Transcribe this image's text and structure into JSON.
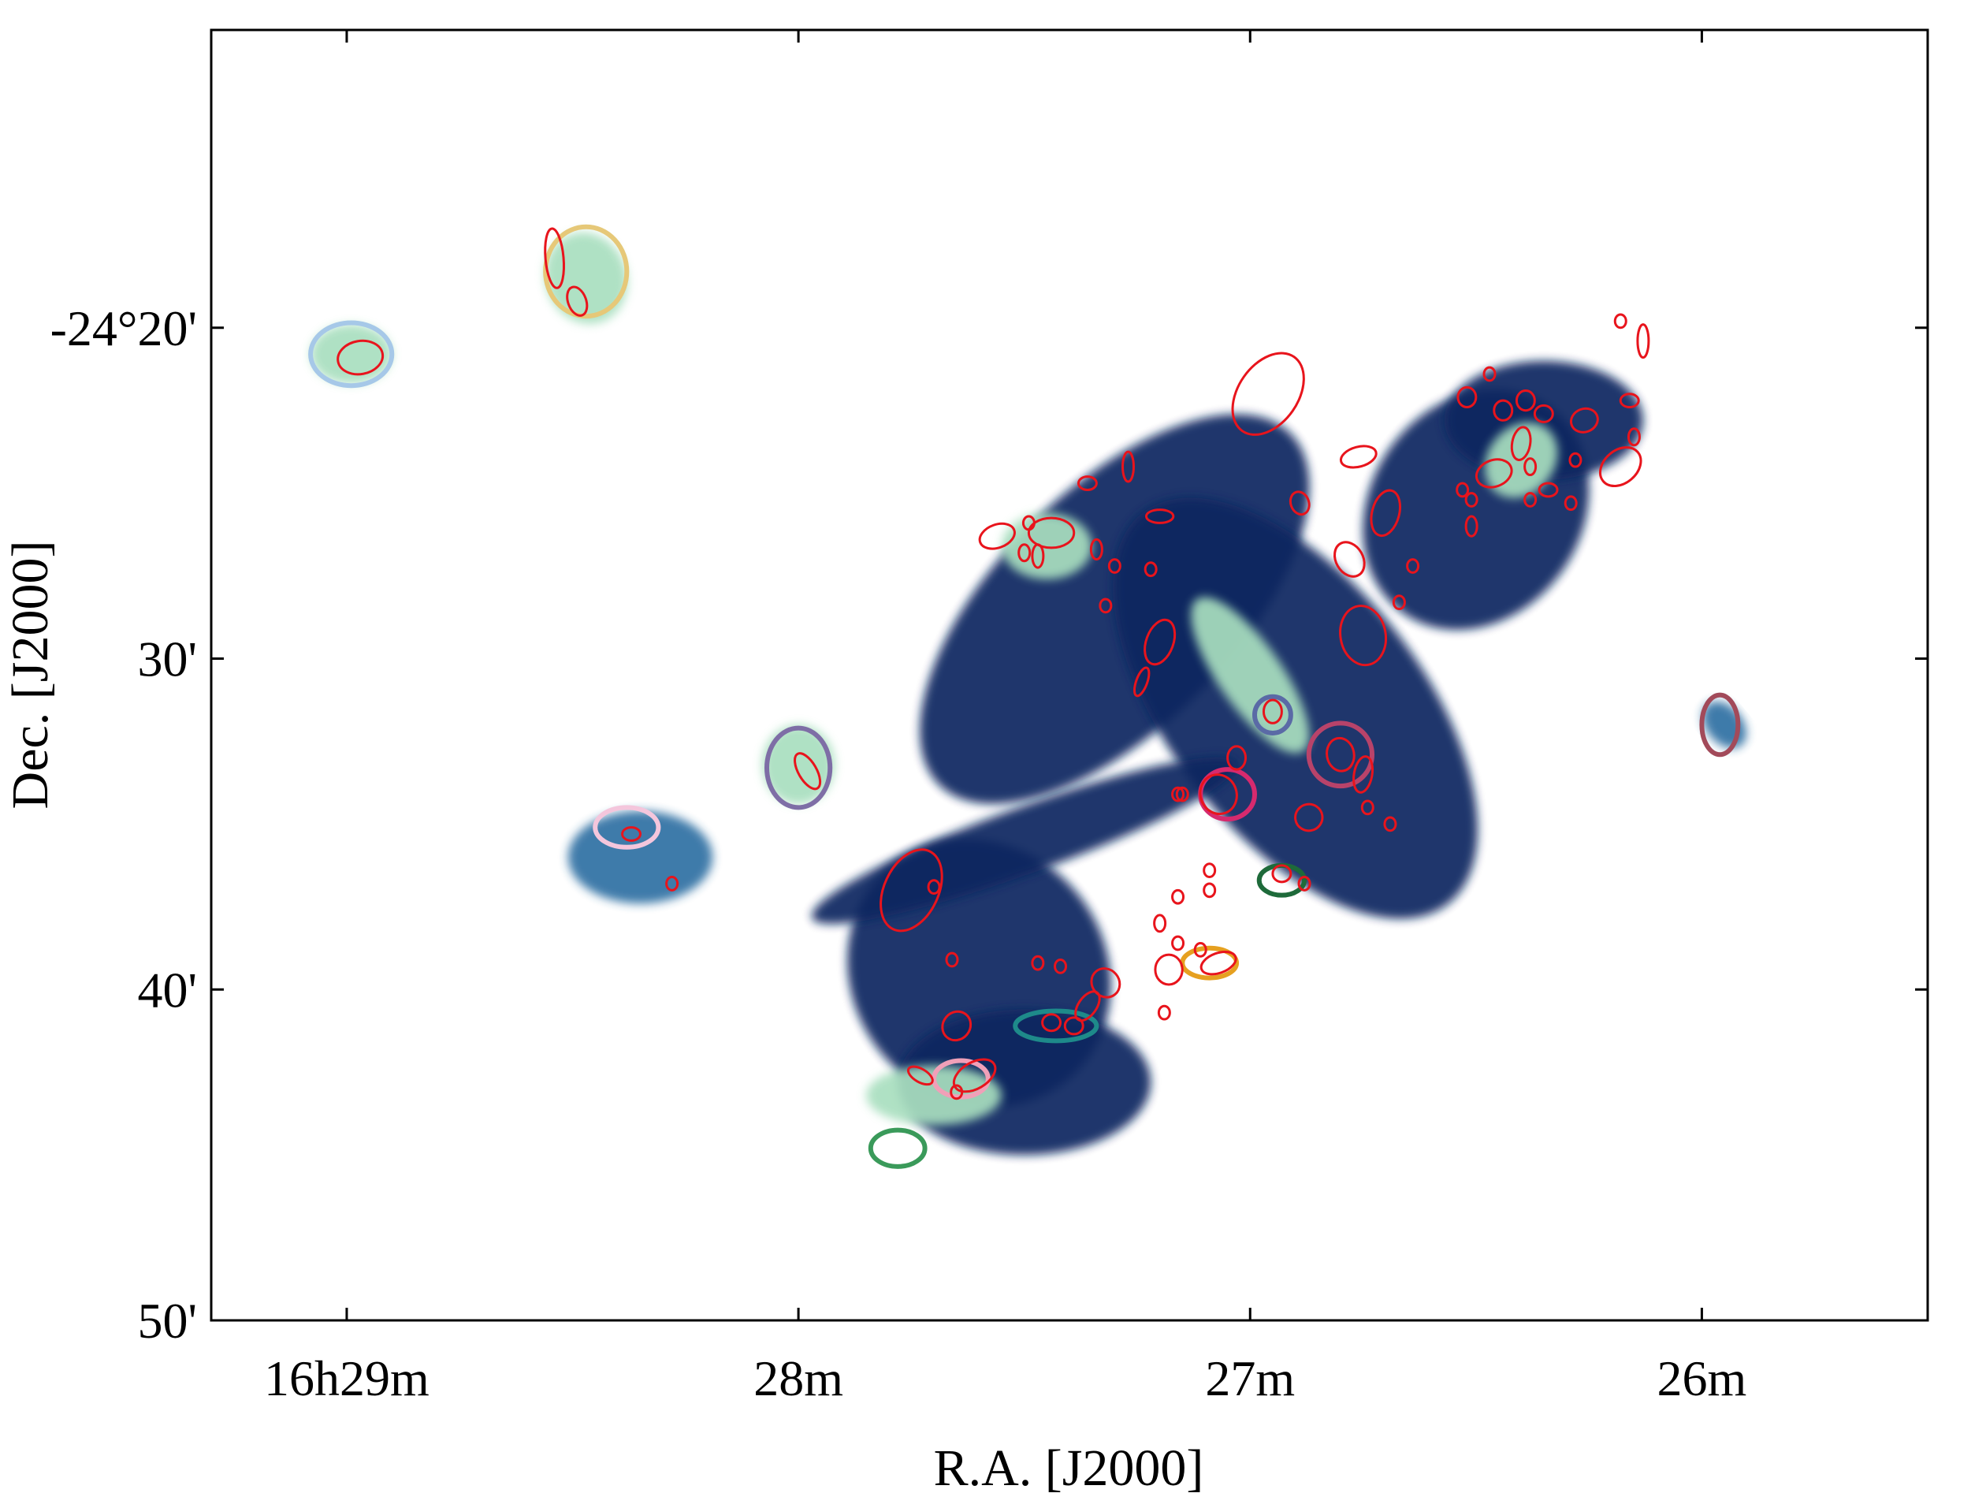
{
  "chart_data": {
    "type": "scatter",
    "title": "",
    "xlabel": "R.A. [J2000]",
    "ylabel": "Dec. [J2000]",
    "x_units": "minutes of R.A. relative to 16h00m (increasing to the left)",
    "y_units": "arcminutes of Dec. below -24°00'",
    "xlim": [
      29.3,
      25.5
    ],
    "ylim": [
      50,
      11
    ],
    "x_ticks": [
      {
        "value": 29,
        "label": "16h29m"
      },
      {
        "value": 28,
        "label": "28m"
      },
      {
        "value": 27,
        "label": "27m"
      },
      {
        "value": 26,
        "label": "26m"
      }
    ],
    "y_ticks": [
      {
        "value": 20,
        "label": "-24°20'"
      },
      {
        "value": 30,
        "label": "30'"
      },
      {
        "value": 40,
        "label": "40'"
      },
      {
        "value": 50,
        "label": "50'"
      }
    ],
    "grid": false,
    "legend": "none",
    "colors": {
      "map_dark": "#0d2560",
      "map_mid": "#2f6fa3",
      "map_light": "#a9dfbf",
      "ellipse": "#e8141c",
      "frame": "#000000"
    },
    "map_regions": [
      {
        "x": 28.99,
        "y": 20.8,
        "rx": 0.09,
        "ry": 0.9,
        "rot": 0,
        "level": "light"
      },
      {
        "x": 28.47,
        "y": 18.5,
        "rx": 0.09,
        "ry": 1.4,
        "rot": -20,
        "level": "light"
      },
      {
        "x": 27.3,
        "y": 28.5,
        "rx": 0.55,
        "ry": 3.6,
        "rot": -45,
        "level": "dark"
      },
      {
        "x": 26.9,
        "y": 31.5,
        "rx": 0.28,
        "ry": 7.5,
        "rot": -38,
        "level": "dark"
      },
      {
        "x": 26.5,
        "y": 25.5,
        "rx": 0.28,
        "ry": 3.2,
        "rot": -55,
        "level": "dark"
      },
      {
        "x": 26.35,
        "y": 22.8,
        "rx": 0.22,
        "ry": 1.8,
        "rot": 0,
        "level": "dark"
      },
      {
        "x": 27.6,
        "y": 39.5,
        "rx": 0.28,
        "ry": 4.2,
        "rot": -40,
        "level": "dark"
      },
      {
        "x": 27.5,
        "y": 42.8,
        "rx": 0.28,
        "ry": 2.2,
        "rot": 0,
        "level": "dark"
      },
      {
        "x": 28.0,
        "y": 33.2,
        "rx": 0.08,
        "ry": 1.2,
        "rot": 0,
        "level": "light"
      },
      {
        "x": 28.35,
        "y": 36.0,
        "rx": 0.16,
        "ry": 1.4,
        "rot": 0,
        "level": "mid"
      },
      {
        "x": 27.5,
        "y": 35.5,
        "rx": 0.5,
        "ry": 1.0,
        "rot": -20,
        "level": "dark"
      },
      {
        "x": 27.0,
        "y": 30.5,
        "rx": 0.07,
        "ry": 2.8,
        "rot": -35,
        "level": "light"
      },
      {
        "x": 27.45,
        "y": 26.6,
        "rx": 0.1,
        "ry": 1.0,
        "rot": 0,
        "level": "light"
      },
      {
        "x": 27.7,
        "y": 43.2,
        "rx": 0.15,
        "ry": 0.9,
        "rot": 0,
        "level": "light"
      },
      {
        "x": 26.4,
        "y": 24.0,
        "rx": 0.09,
        "ry": 1.0,
        "rot": -50,
        "level": "light"
      },
      {
        "x": 25.95,
        "y": 32.0,
        "rx": 0.04,
        "ry": 0.8,
        "rot": -40,
        "level": "mid"
      }
    ],
    "contours": [
      {
        "x": 28.99,
        "y": 20.8,
        "rx": 0.09,
        "ry": 0.95,
        "color": "#a6c8e8"
      },
      {
        "x": 28.47,
        "y": 18.3,
        "rx": 0.09,
        "ry": 1.35,
        "color": "#e6c878"
      },
      {
        "x": 28.0,
        "y": 33.3,
        "rx": 0.07,
        "ry": 1.2,
        "color": "#7e6ea6"
      },
      {
        "x": 28.38,
        "y": 35.1,
        "rx": 0.07,
        "ry": 0.6,
        "color": "#f4c6dc"
      },
      {
        "x": 27.05,
        "y": 34.1,
        "rx": 0.06,
        "ry": 0.75,
        "color": "#d62a6e"
      },
      {
        "x": 26.95,
        "y": 31.7,
        "rx": 0.04,
        "ry": 0.55,
        "color": "#5a6aa6"
      },
      {
        "x": 26.8,
        "y": 32.9,
        "rx": 0.07,
        "ry": 0.95,
        "color": "#b8436a"
      },
      {
        "x": 26.93,
        "y": 36.7,
        "rx": 0.05,
        "ry": 0.45,
        "color": "#1e6a3a"
      },
      {
        "x": 27.09,
        "y": 39.2,
        "rx": 0.06,
        "ry": 0.45,
        "color": "#e6a020"
      },
      {
        "x": 27.43,
        "y": 41.1,
        "rx": 0.09,
        "ry": 0.45,
        "color": "#1e8a8a"
      },
      {
        "x": 27.64,
        "y": 42.7,
        "rx": 0.06,
        "ry": 0.55,
        "color": "#f0a0b8"
      },
      {
        "x": 27.78,
        "y": 44.8,
        "rx": 0.06,
        "ry": 0.55,
        "color": "#3a9a5a"
      },
      {
        "x": 25.96,
        "y": 32.0,
        "rx": 0.04,
        "ry": 0.9,
        "color": "#a24a5a"
      }
    ],
    "cores": [
      {
        "x": 28.97,
        "y": 20.9,
        "rx": 0.05,
        "ry": 0.5,
        "rot": -10
      },
      {
        "x": 28.54,
        "y": 17.9,
        "rx": 0.02,
        "ry": 0.9,
        "rot": -5
      },
      {
        "x": 28.49,
        "y": 19.2,
        "rx": 0.02,
        "ry": 0.45,
        "rot": -20
      },
      {
        "x": 27.98,
        "y": 33.4,
        "rx": 0.02,
        "ry": 0.6,
        "rot": -30
      },
      {
        "x": 28.37,
        "y": 35.3,
        "rx": 0.02,
        "ry": 0.2,
        "rot": 0
      },
      {
        "x": 28.28,
        "y": 36.8,
        "rx": 0.01,
        "ry": 0.2,
        "rot": 0
      },
      {
        "x": 27.75,
        "y": 37.0,
        "rx": 0.06,
        "ry": 1.3,
        "rot": 25
      },
      {
        "x": 27.7,
        "y": 36.9,
        "rx": 0.01,
        "ry": 0.2,
        "rot": 0
      },
      {
        "x": 27.66,
        "y": 39.1,
        "rx": 0.01,
        "ry": 0.2,
        "rot": 0
      },
      {
        "x": 27.65,
        "y": 41.1,
        "rx": 0.03,
        "ry": 0.45,
        "rot": 40
      },
      {
        "x": 27.61,
        "y": 42.6,
        "rx": 0.05,
        "ry": 0.4,
        "rot": -30
      },
      {
        "x": 27.73,
        "y": 42.6,
        "rx": 0.03,
        "ry": 0.2,
        "rot": 30
      },
      {
        "x": 27.65,
        "y": 43.1,
        "rx": 0.01,
        "ry": 0.2,
        "rot": 0
      },
      {
        "x": 27.47,
        "y": 39.2,
        "rx": 0.01,
        "ry": 0.2,
        "rot": 0
      },
      {
        "x": 27.42,
        "y": 39.3,
        "rx": 0.01,
        "ry": 0.2,
        "rot": 0
      },
      {
        "x": 27.36,
        "y": 40.5,
        "rx": 0.02,
        "ry": 0.5,
        "rot": 35
      },
      {
        "x": 27.32,
        "y": 39.8,
        "rx": 0.03,
        "ry": 0.45,
        "rot": -40
      },
      {
        "x": 27.44,
        "y": 41.0,
        "rx": 0.02,
        "ry": 0.25,
        "rot": 0
      },
      {
        "x": 27.39,
        "y": 41.1,
        "rx": 0.02,
        "ry": 0.25,
        "rot": 0
      },
      {
        "x": 27.18,
        "y": 39.4,
        "rx": 0.03,
        "ry": 0.45,
        "rot": 0
      },
      {
        "x": 27.07,
        "y": 39.2,
        "rx": 0.04,
        "ry": 0.3,
        "rot": -20
      },
      {
        "x": 27.19,
        "y": 40.7,
        "rx": 0.01,
        "ry": 0.2,
        "rot": 0
      },
      {
        "x": 27.2,
        "y": 38.0,
        "rx": 0.01,
        "ry": 0.25,
        "rot": 0
      },
      {
        "x": 27.16,
        "y": 38.6,
        "rx": 0.01,
        "ry": 0.2,
        "rot": 0
      },
      {
        "x": 27.11,
        "y": 38.8,
        "rx": 0.01,
        "ry": 0.2,
        "rot": 0
      },
      {
        "x": 27.16,
        "y": 37.2,
        "rx": 0.01,
        "ry": 0.2,
        "rot": 0
      },
      {
        "x": 27.09,
        "y": 37.0,
        "rx": 0.01,
        "ry": 0.2,
        "rot": 0
      },
      {
        "x": 27.09,
        "y": 36.4,
        "rx": 0.01,
        "ry": 0.2,
        "rot": 0
      },
      {
        "x": 27.16,
        "y": 34.1,
        "rx": 0.01,
        "ry": 0.2,
        "rot": 0
      },
      {
        "x": 27.07,
        "y": 34.1,
        "rx": 0.04,
        "ry": 0.6,
        "rot": -20
      },
      {
        "x": 27.03,
        "y": 33.0,
        "rx": 0.02,
        "ry": 0.35,
        "rot": 0
      },
      {
        "x": 26.95,
        "y": 31.6,
        "rx": 0.02,
        "ry": 0.35,
        "rot": 0
      },
      {
        "x": 26.87,
        "y": 34.8,
        "rx": 0.03,
        "ry": 0.4,
        "rot": -10
      },
      {
        "x": 26.8,
        "y": 32.9,
        "rx": 0.03,
        "ry": 0.5,
        "rot": -10
      },
      {
        "x": 26.75,
        "y": 33.5,
        "rx": 0.02,
        "ry": 0.55,
        "rot": 10
      },
      {
        "x": 26.74,
        "y": 34.5,
        "rx": 0.01,
        "ry": 0.2,
        "rot": 0
      },
      {
        "x": 26.69,
        "y": 35.0,
        "rx": 0.01,
        "ry": 0.2,
        "rot": 0
      },
      {
        "x": 26.93,
        "y": 36.5,
        "rx": 0.02,
        "ry": 0.25,
        "rot": 0
      },
      {
        "x": 26.88,
        "y": 36.8,
        "rx": 0.01,
        "ry": 0.2,
        "rot": 0
      },
      {
        "x": 26.75,
        "y": 29.3,
        "rx": 0.05,
        "ry": 0.9,
        "rot": -10
      },
      {
        "x": 26.78,
        "y": 27.0,
        "rx": 0.03,
        "ry": 0.55,
        "rot": -30
      },
      {
        "x": 26.7,
        "y": 25.6,
        "rx": 0.03,
        "ry": 0.7,
        "rot": 15
      },
      {
        "x": 26.76,
        "y": 23.9,
        "rx": 0.04,
        "ry": 0.3,
        "rot": -15
      },
      {
        "x": 26.89,
        "y": 25.3,
        "rx": 0.02,
        "ry": 0.35,
        "rot": -20
      },
      {
        "x": 26.96,
        "y": 22.0,
        "rx": 0.1,
        "ry": 0.9,
        "rot": -55
      },
      {
        "x": 26.64,
        "y": 27.2,
        "rx": 0.01,
        "ry": 0.2,
        "rot": 0
      },
      {
        "x": 26.67,
        "y": 28.3,
        "rx": 0.01,
        "ry": 0.2,
        "rot": 0
      },
      {
        "x": 26.53,
        "y": 24.9,
        "rx": 0.01,
        "ry": 0.2,
        "rot": 0
      },
      {
        "x": 26.51,
        "y": 25.2,
        "rx": 0.01,
        "ry": 0.2,
        "rot": 0
      },
      {
        "x": 26.46,
        "y": 24.4,
        "rx": 0.04,
        "ry": 0.4,
        "rot": -20
      },
      {
        "x": 26.51,
        "y": 26.0,
        "rx": 0.01,
        "ry": 0.3,
        "rot": 0
      },
      {
        "x": 26.52,
        "y": 22.1,
        "rx": 0.02,
        "ry": 0.3,
        "rot": 0
      },
      {
        "x": 26.47,
        "y": 21.4,
        "rx": 0.01,
        "ry": 0.2,
        "rot": 0
      },
      {
        "x": 26.44,
        "y": 22.5,
        "rx": 0.02,
        "ry": 0.3,
        "rot": 0
      },
      {
        "x": 26.4,
        "y": 23.5,
        "rx": 0.02,
        "ry": 0.5,
        "rot": 10
      },
      {
        "x": 26.39,
        "y": 22.2,
        "rx": 0.02,
        "ry": 0.3,
        "rot": 0
      },
      {
        "x": 26.35,
        "y": 22.6,
        "rx": 0.02,
        "ry": 0.25,
        "rot": 0
      },
      {
        "x": 26.38,
        "y": 24.2,
        "rx": 0.01,
        "ry": 0.25,
        "rot": 0
      },
      {
        "x": 26.38,
        "y": 25.2,
        "rx": 0.01,
        "ry": 0.2,
        "rot": 0
      },
      {
        "x": 26.26,
        "y": 22.8,
        "rx": 0.03,
        "ry": 0.35,
        "rot": -20
      },
      {
        "x": 26.28,
        "y": 24.0,
        "rx": 0.01,
        "ry": 0.2,
        "rot": 0
      },
      {
        "x": 26.18,
        "y": 24.2,
        "rx": 0.05,
        "ry": 0.5,
        "rot": -40
      },
      {
        "x": 26.29,
        "y": 25.3,
        "rx": 0.01,
        "ry": 0.2,
        "rot": 0
      },
      {
        "x": 26.15,
        "y": 23.3,
        "rx": 0.01,
        "ry": 0.25,
        "rot": 0
      },
      {
        "x": 26.13,
        "y": 20.4,
        "rx": 0.01,
        "ry": 0.5,
        "rot": 0
      },
      {
        "x": 26.18,
        "y": 19.8,
        "rx": 0.01,
        "ry": 0.2,
        "rot": 0
      },
      {
        "x": 26.16,
        "y": 22.2,
        "rx": 0.02,
        "ry": 0.2,
        "rot": 0
      },
      {
        "x": 26.34,
        "y": 24.9,
        "rx": 0.02,
        "ry": 0.2,
        "rot": 0
      },
      {
        "x": 27.44,
        "y": 26.2,
        "rx": 0.05,
        "ry": 0.45,
        "rot": 0
      },
      {
        "x": 27.56,
        "y": 26.3,
        "rx": 0.04,
        "ry": 0.35,
        "rot": -20
      },
      {
        "x": 27.5,
        "y": 26.8,
        "rx": 0.01,
        "ry": 0.25,
        "rot": 0
      },
      {
        "x": 27.47,
        "y": 26.9,
        "rx": 0.01,
        "ry": 0.35,
        "rot": 0
      },
      {
        "x": 27.49,
        "y": 25.9,
        "rx": 0.01,
        "ry": 0.2,
        "rot": 0
      },
      {
        "x": 27.36,
        "y": 24.7,
        "rx": 0.02,
        "ry": 0.2,
        "rot": 0
      },
      {
        "x": 27.27,
        "y": 24.2,
        "rx": 0.01,
        "ry": 0.45,
        "rot": 0
      },
      {
        "x": 27.34,
        "y": 26.7,
        "rx": 0.01,
        "ry": 0.3,
        "rot": 0
      },
      {
        "x": 27.3,
        "y": 27.2,
        "rx": 0.01,
        "ry": 0.2,
        "rot": 0
      },
      {
        "x": 27.32,
        "y": 28.4,
        "rx": 0.01,
        "ry": 0.2,
        "rot": 0
      },
      {
        "x": 27.2,
        "y": 29.5,
        "rx": 0.03,
        "ry": 0.7,
        "rot": 20
      },
      {
        "x": 27.24,
        "y": 30.7,
        "rx": 0.01,
        "ry": 0.45,
        "rot": 20
      },
      {
        "x": 27.2,
        "y": 25.7,
        "rx": 0.03,
        "ry": 0.2,
        "rot": 0
      },
      {
        "x": 27.22,
        "y": 27.3,
        "rx": 0.01,
        "ry": 0.2,
        "rot": 0
      },
      {
        "x": 27.15,
        "y": 34.1,
        "rx": 0.01,
        "ry": 0.2,
        "rot": 0
      }
    ]
  }
}
